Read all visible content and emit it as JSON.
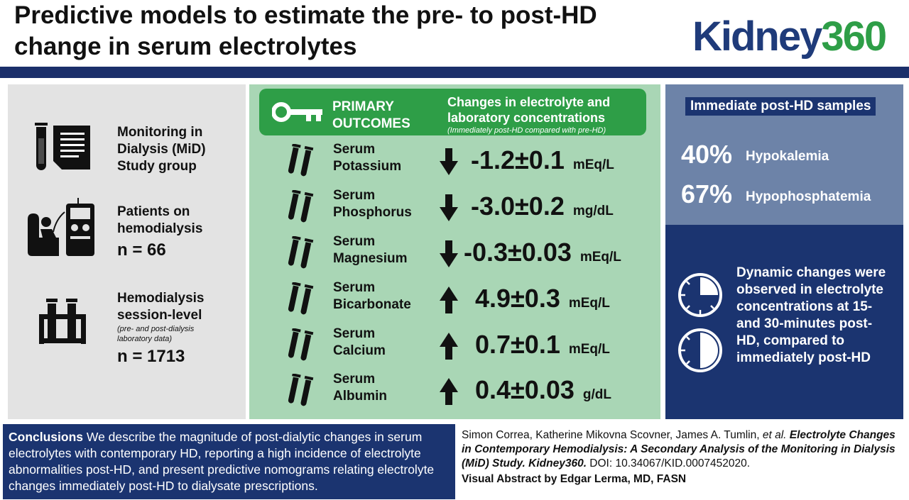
{
  "header": {
    "title": "Predictive models to estimate the pre- to post-HD change in serum electrolytes",
    "logo_part1": "Kidney",
    "logo_part2": "360"
  },
  "left": {
    "study_text": "Monitoring in Dialysis (MiD) Study group",
    "patients_text": "Patients on hemodialysis",
    "patients_n": "n = 66",
    "sessions_text": "Hemodialysis session-level",
    "sessions_note": "(pre- and post-dialysis laboratory data)",
    "sessions_n": "n = 1713"
  },
  "outcomes": {
    "heading": "PRIMARY OUTCOMES",
    "subheading": "Changes in electrolyte and laboratory concentrations",
    "note": "(Immediately post-HD compared with pre-HD)",
    "rows": [
      {
        "name": "Serum Potassium",
        "direction": "down",
        "value": "-1.2±0.1",
        "unit": "mEq/L"
      },
      {
        "name": "Serum Phosphorus",
        "direction": "down",
        "value": "-3.0±0.2",
        "unit": "mg/dL"
      },
      {
        "name": "Serum Magnesium",
        "direction": "down",
        "value": "-0.3±0.03",
        "unit": "mEq/L"
      },
      {
        "name": "Serum Bicarbonate",
        "direction": "up",
        "value": "4.9±0.3",
        "unit": "mEq/L"
      },
      {
        "name": "Serum Calcium",
        "direction": "up",
        "value": "0.7±0.1",
        "unit": "mEq/L"
      },
      {
        "name": "Serum Albumin",
        "direction": "up",
        "value": "0.4±0.03",
        "unit": "g/dL"
      }
    ]
  },
  "right": {
    "samples_label": "Immediate post-HD samples",
    "stats": [
      {
        "pct": "40%",
        "label": "Hypokalemia"
      },
      {
        "pct": "67%",
        "label": "Hypophosphatemia"
      }
    ],
    "dynamic_text": "Dynamic changes were observed in electrolyte concentrations at 15- and 30-minutes post-HD, compared to immediately post-HD"
  },
  "conclusions": {
    "label": "Conclusions",
    "text": " We describe the magnitude of post-dialytic changes in serum electrolytes with contemporary HD, reporting a high incidence of electrolyte abnormalities post-HD, and present predictive nomograms relating electrolyte changes immediately post-HD to dialysate prescriptions."
  },
  "citation": {
    "authors": "Simon Correa, Katherine Mikovna Scovner, James A. Tumlin, ",
    "etal": "et al.",
    "title": " Electrolyte Changes in Contemporary Hemodialysis: A Secondary Analysis of the Monitoring in Dialysis (MiD) Study.",
    "journal": " Kidney360.",
    "doi": " DOI: 10.34067/KID.0007452020.",
    "credit": "Visual Abstract by Edgar Lerma, MD, FASN"
  },
  "colors": {
    "navy": "#1b3470",
    "green": "#2e9e47",
    "mint": "#a9d6b5",
    "grey": "#e3e3e3",
    "slate": "#6d83a8"
  }
}
